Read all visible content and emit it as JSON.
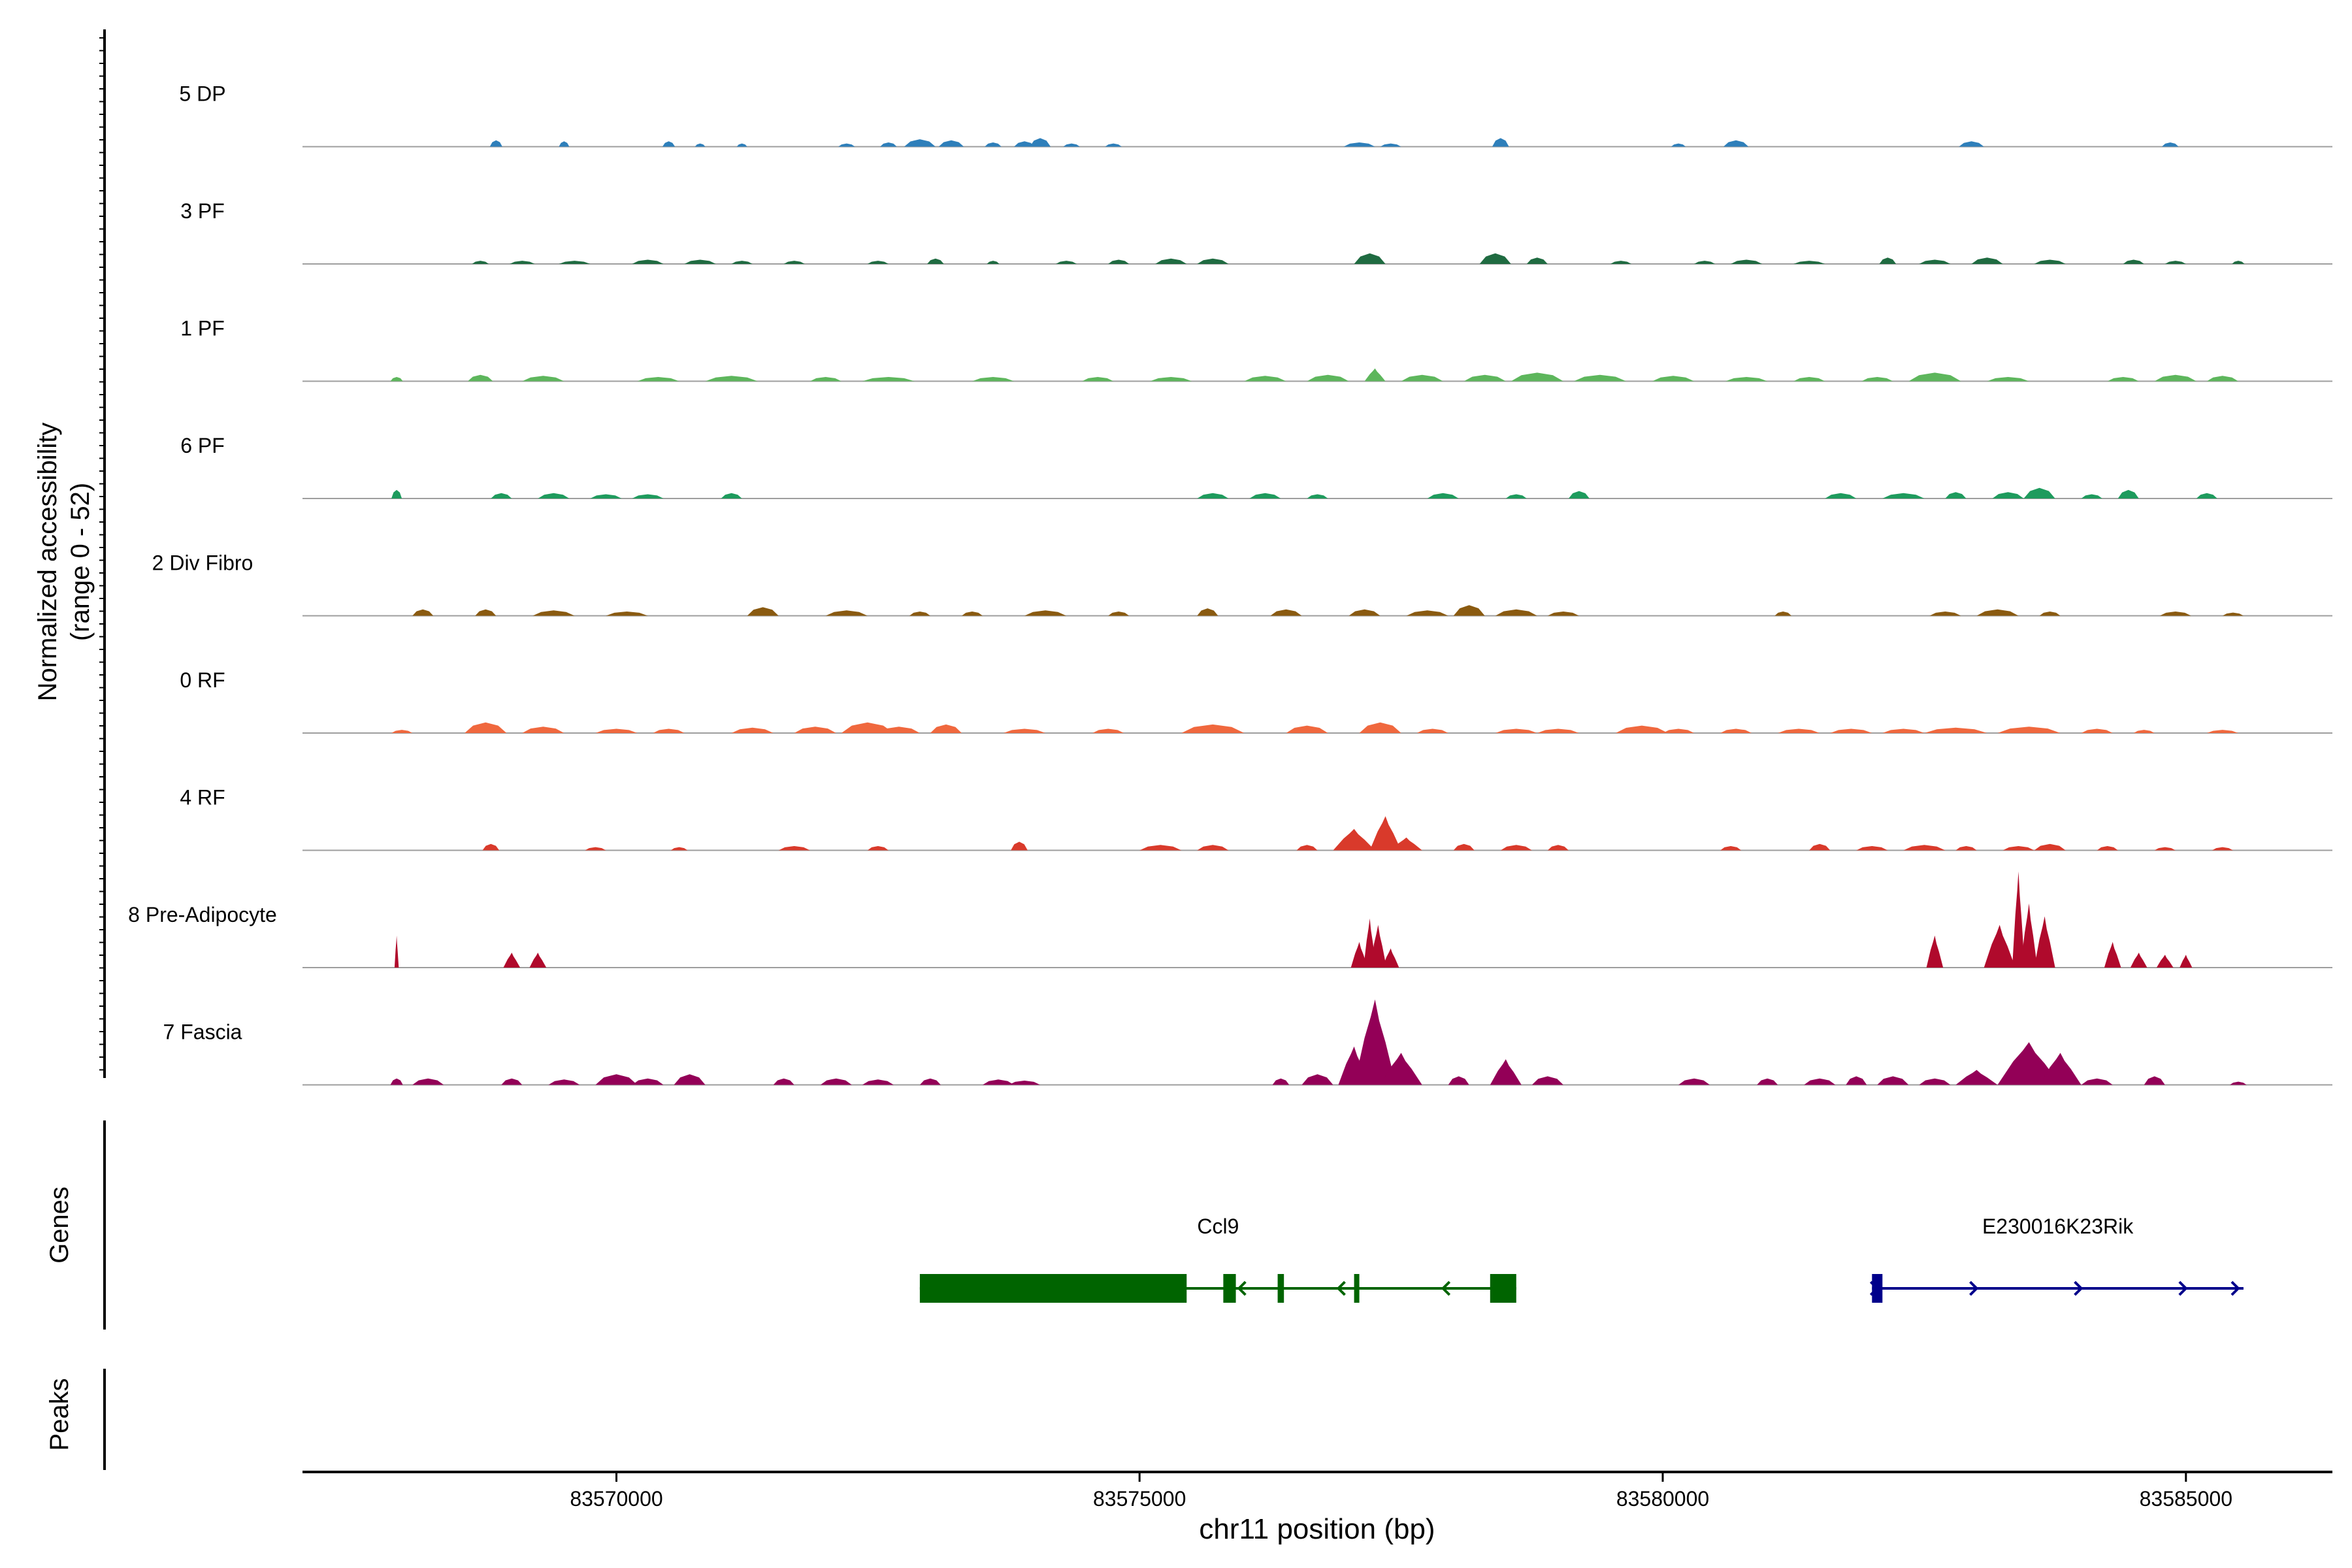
{
  "colors": {
    "5 DP": "#2E7FBA",
    "3 PF": "#1F6B41",
    "1 PF": "#5DB65C",
    "6 PF": "#1E9B5D",
    "2 Div Fibro": "#8A5A10",
    "0 RF": "#F0683E",
    "4 RF": "#D93A2B",
    "8 Pre-Adipocyte": "#B00A2C",
    "7 Fascia": "#930057",
    "gene_minus": "#006400",
    "gene_plus": "#00008B",
    "baseline": "#9E9E9E",
    "axis": "#000000"
  },
  "chart_data": {
    "type": "area",
    "chromosome": "chr11",
    "xlabel": "chr11 position (bp)",
    "xlim": [
      83567000,
      83586400
    ],
    "xticks": [
      83570000,
      83575000,
      83580000,
      83585000
    ],
    "xtick_labels": [
      "83570000",
      "83575000",
      "83580000",
      "83585000"
    ],
    "ylabel_line1": "Normalized accessibility",
    "ylabel_line2": "(range 0 - 52)",
    "ylim": [
      0,
      52
    ],
    "panel_labels": {
      "genes": "Genes",
      "peaks": "Peaks"
    },
    "tracks": [
      {
        "name": "5 DP",
        "peaks": [
          [
            83568850,
            3,
            60
          ],
          [
            83569500,
            2.5,
            50
          ],
          [
            83570500,
            2.5,
            60
          ],
          [
            83570800,
            1.5,
            50
          ],
          [
            83571200,
            1.5,
            50
          ],
          [
            83572200,
            1.5,
            80
          ],
          [
            83572600,
            2,
            80
          ],
          [
            83572900,
            3.5,
            150
          ],
          [
            83573200,
            3,
            120
          ],
          [
            83573600,
            2,
            80
          ],
          [
            83573900,
            2.5,
            100
          ],
          [
            83574050,
            4,
            100
          ],
          [
            83574350,
            1.5,
            80
          ],
          [
            83574750,
            1.5,
            80
          ],
          [
            83577100,
            2,
            150
          ],
          [
            83577400,
            1.5,
            100
          ],
          [
            83578450,
            4,
            80
          ],
          [
            83580150,
            1.5,
            70
          ],
          [
            83580700,
            3,
            120
          ],
          [
            83582950,
            2.5,
            120
          ],
          [
            83584850,
            2,
            80
          ]
        ]
      },
      {
        "name": "3 PF",
        "peaks": [
          [
            83568700,
            1.5,
            80
          ],
          [
            83569100,
            1.5,
            120
          ],
          [
            83569600,
            1.5,
            150
          ],
          [
            83570300,
            2,
            150
          ],
          [
            83570800,
            2,
            150
          ],
          [
            83571200,
            1.5,
            100
          ],
          [
            83571700,
            1.5,
            100
          ],
          [
            83572500,
            1.5,
            100
          ],
          [
            83573050,
            2.5,
            80
          ],
          [
            83573600,
            1.5,
            60
          ],
          [
            83574300,
            1.5,
            100
          ],
          [
            83574800,
            2,
            100
          ],
          [
            83575300,
            2.5,
            150
          ],
          [
            83575700,
            2.5,
            150
          ],
          [
            83577200,
            5,
            150
          ],
          [
            83578400,
            5,
            150
          ],
          [
            83578800,
            3,
            100
          ],
          [
            83579600,
            1.5,
            100
          ],
          [
            83580400,
            1.5,
            100
          ],
          [
            83580800,
            2,
            150
          ],
          [
            83581400,
            1.5,
            150
          ],
          [
            83582150,
            3,
            80
          ],
          [
            83582600,
            2,
            150
          ],
          [
            83583100,
            3,
            150
          ],
          [
            83583700,
            2,
            150
          ],
          [
            83584500,
            2,
            100
          ],
          [
            83584900,
            1.5,
            100
          ],
          [
            83585500,
            1.5,
            60
          ]
        ]
      },
      {
        "name": "1 PF",
        "peaks": [
          [
            83567900,
            2,
            60
          ],
          [
            83568700,
            3,
            120
          ],
          [
            83569300,
            2.5,
            200
          ],
          [
            83570400,
            2,
            200
          ],
          [
            83571100,
            2.5,
            250
          ],
          [
            83572000,
            2,
            150
          ],
          [
            83572600,
            2,
            250
          ],
          [
            83573600,
            2,
            200
          ],
          [
            83574600,
            2,
            150
          ],
          [
            83575300,
            2,
            200
          ],
          [
            83576200,
            2.5,
            200
          ],
          [
            83576800,
            3,
            200
          ],
          [
            83577250,
            6,
            100
          ],
          [
            83577700,
            3,
            200
          ],
          [
            83578300,
            3,
            200
          ],
          [
            83578800,
            4,
            250
          ],
          [
            83579400,
            3,
            250
          ],
          [
            83580100,
            2.5,
            200
          ],
          [
            83580800,
            2,
            200
          ],
          [
            83581400,
            2,
            150
          ],
          [
            83582050,
            2,
            150
          ],
          [
            83582600,
            4,
            250
          ],
          [
            83583300,
            2,
            200
          ],
          [
            83584400,
            2,
            150
          ],
          [
            83584900,
            3,
            200
          ],
          [
            83585350,
            2.5,
            150
          ]
        ]
      },
      {
        "name": "6 PF",
        "peaks": [
          [
            83567900,
            4,
            50
          ],
          [
            83568900,
            2.5,
            100
          ],
          [
            83569400,
            2.5,
            150
          ],
          [
            83569900,
            2,
            150
          ],
          [
            83570300,
            2,
            150
          ],
          [
            83571100,
            2.5,
            100
          ],
          [
            83575700,
            2.5,
            150
          ],
          [
            83576200,
            2.5,
            150
          ],
          [
            83576700,
            2,
            100
          ],
          [
            83577900,
            2.5,
            150
          ],
          [
            83578600,
            2,
            100
          ],
          [
            83579200,
            3.5,
            100
          ],
          [
            83581700,
            2.5,
            150
          ],
          [
            83582300,
            2.5,
            200
          ],
          [
            83582800,
            3,
            100
          ],
          [
            83583300,
            3,
            150
          ],
          [
            83583600,
            5,
            150
          ],
          [
            83584100,
            2,
            100
          ],
          [
            83584450,
            4,
            100
          ],
          [
            83585200,
            2.5,
            100
          ]
        ]
      },
      {
        "name": "2 Div Fibro",
        "peaks": [
          [
            83568150,
            3,
            100
          ],
          [
            83568750,
            3,
            100
          ],
          [
            83569400,
            2.5,
            200
          ],
          [
            83570100,
            2,
            200
          ],
          [
            83571400,
            4,
            150
          ],
          [
            83572200,
            2.5,
            200
          ],
          [
            83572900,
            2,
            100
          ],
          [
            83573400,
            2,
            100
          ],
          [
            83574100,
            2.5,
            200
          ],
          [
            83574800,
            2,
            100
          ],
          [
            83575650,
            3.5,
            100
          ],
          [
            83576400,
            3,
            150
          ],
          [
            83577150,
            3,
            150
          ],
          [
            83577750,
            2.5,
            200
          ],
          [
            83578150,
            5,
            150
          ],
          [
            83578600,
            3,
            200
          ],
          [
            83579050,
            2,
            150
          ],
          [
            83581150,
            2,
            80
          ],
          [
            83582700,
            2,
            150
          ],
          [
            83583200,
            3,
            200
          ],
          [
            83583700,
            2,
            100
          ],
          [
            83584900,
            2,
            150
          ],
          [
            83585450,
            1.5,
            100
          ]
        ]
      },
      {
        "name": "0 RF",
        "peaks": [
          [
            83567950,
            1.5,
            100
          ],
          [
            83568750,
            5,
            200
          ],
          [
            83569300,
            3,
            200
          ],
          [
            83570000,
            2,
            200
          ],
          [
            83570500,
            2,
            150
          ],
          [
            83571300,
            2.5,
            200
          ],
          [
            83571900,
            3,
            200
          ],
          [
            83572400,
            5,
            250
          ],
          [
            83572700,
            3,
            200
          ],
          [
            83573150,
            4,
            150
          ],
          [
            83573900,
            2,
            200
          ],
          [
            83574700,
            2,
            150
          ],
          [
            83575700,
            4,
            300
          ],
          [
            83576600,
            3.5,
            200
          ],
          [
            83577300,
            5,
            200
          ],
          [
            83577800,
            2,
            150
          ],
          [
            83578600,
            2,
            200
          ],
          [
            83579000,
            2,
            200
          ],
          [
            83579800,
            3.5,
            250
          ],
          [
            83580150,
            2,
            150
          ],
          [
            83580700,
            2,
            150
          ],
          [
            83581300,
            2,
            200
          ],
          [
            83581800,
            2,
            200
          ],
          [
            83582300,
            2,
            200
          ],
          [
            83582800,
            2.5,
            300
          ],
          [
            83583500,
            3,
            300
          ],
          [
            83584150,
            2,
            150
          ],
          [
            83584600,
            1.5,
            100
          ],
          [
            83585350,
            1.5,
            150
          ]
        ]
      },
      {
        "name": "4 RF",
        "peaks": [
          [
            83568800,
            3,
            80
          ],
          [
            83569800,
            1.5,
            100
          ],
          [
            83570600,
            1.5,
            80
          ],
          [
            83571700,
            2,
            150
          ],
          [
            83572500,
            2,
            100
          ],
          [
            83573850,
            4,
            80
          ],
          [
            83575200,
            2.5,
            200
          ],
          [
            83575700,
            2.5,
            150
          ],
          [
            83576600,
            2.5,
            100
          ],
          [
            83577050,
            10,
            200
          ],
          [
            83577350,
            16,
            150
          ],
          [
            83577550,
            6,
            150
          ],
          [
            83578100,
            3,
            100
          ],
          [
            83578600,
            2.5,
            150
          ],
          [
            83579000,
            2.5,
            100
          ],
          [
            83580650,
            2,
            100
          ],
          [
            83581500,
            3,
            100
          ],
          [
            83582000,
            2,
            150
          ],
          [
            83582500,
            2.5,
            200
          ],
          [
            83582900,
            2,
            100
          ],
          [
            83583400,
            2,
            150
          ],
          [
            83583700,
            3,
            150
          ],
          [
            83584250,
            2,
            100
          ],
          [
            83584800,
            1.5,
            100
          ],
          [
            83585350,
            1.5,
            100
          ]
        ]
      },
      {
        "name": "8 Pre-Adipocyte",
        "peaks": [
          [
            83567900,
            15,
            20
          ],
          [
            83569000,
            7,
            80
          ],
          [
            83569250,
            7,
            80
          ],
          [
            83577100,
            12,
            80
          ],
          [
            83577200,
            23,
            60
          ],
          [
            83577280,
            20,
            80
          ],
          [
            83577400,
            9,
            80
          ],
          [
            83582600,
            15,
            80
          ],
          [
            83583220,
            20,
            150
          ],
          [
            83583400,
            45,
            60
          ],
          [
            83583500,
            30,
            80
          ],
          [
            83583650,
            24,
            100
          ],
          [
            83584300,
            12,
            80
          ],
          [
            83584550,
            7,
            80
          ],
          [
            83584800,
            6,
            80
          ],
          [
            83585000,
            6,
            60
          ]
        ]
      },
      {
        "name": "7 Fascia",
        "peaks": [
          [
            83567900,
            3,
            60
          ],
          [
            83568200,
            3,
            150
          ],
          [
            83569000,
            3,
            100
          ],
          [
            83569500,
            2.5,
            150
          ],
          [
            83570000,
            5,
            200
          ],
          [
            83570300,
            3,
            150
          ],
          [
            83570700,
            5,
            150
          ],
          [
            83571600,
            3,
            100
          ],
          [
            83572100,
            3,
            150
          ],
          [
            83572500,
            2.5,
            150
          ],
          [
            83573000,
            3,
            100
          ],
          [
            83573650,
            2.5,
            150
          ],
          [
            83573900,
            2,
            150
          ],
          [
            83576350,
            3,
            80
          ],
          [
            83576700,
            5,
            150
          ],
          [
            83577050,
            18,
            150
          ],
          [
            83577250,
            40,
            200
          ],
          [
            83577500,
            15,
            200
          ],
          [
            83578050,
            4,
            100
          ],
          [
            83578500,
            12,
            150
          ],
          [
            83578900,
            4,
            150
          ],
          [
            83580300,
            3,
            150
          ],
          [
            83581000,
            3,
            100
          ],
          [
            83581500,
            3,
            150
          ],
          [
            83581850,
            4,
            100
          ],
          [
            83582200,
            4,
            150
          ],
          [
            83582600,
            3,
            150
          ],
          [
            83583000,
            7,
            200
          ],
          [
            83583500,
            20,
            300
          ],
          [
            83583800,
            15,
            200
          ],
          [
            83584150,
            3,
            150
          ],
          [
            83584700,
            4,
            100
          ],
          [
            83585500,
            1.5,
            80
          ]
        ]
      }
    ],
    "genes": [
      {
        "name": "Ccl9",
        "strand": "-",
        "start": 83572900,
        "end": 83578600,
        "exons": [
          [
            83572900,
            83575450
          ],
          [
            83575800,
            83575920
          ],
          [
            83576320,
            83576380
          ],
          [
            83577050,
            83577080
          ],
          [
            83578350,
            83578600
          ]
        ],
        "arrows": [
          83575950,
          83576900,
          83577900
        ]
      },
      {
        "name": "E230016K23Rik",
        "strand": "+",
        "start": 83582000,
        "end": 83585550,
        "exons": [
          [
            83582000,
            83582100
          ]
        ],
        "arrows": [
          83582050,
          83583000,
          83584000,
          83585000,
          83585500
        ]
      }
    ]
  }
}
